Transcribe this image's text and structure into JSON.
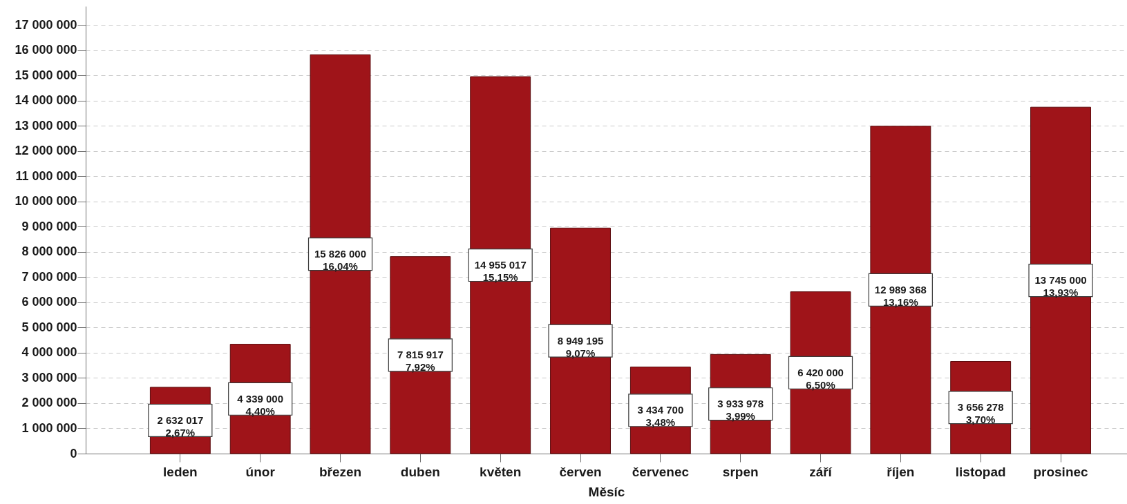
{
  "chart_data": {
    "type": "bar",
    "xlabel": "Měsíc",
    "categories": [
      "leden",
      "únor",
      "březen",
      "duben",
      "květen",
      "červen",
      "červenec",
      "srpen",
      "září",
      "říjen",
      "listopad",
      "prosinec"
    ],
    "values": [
      2632017,
      4339000,
      15826000,
      7815917,
      14955017,
      8949195,
      3434700,
      3933978,
      6420000,
      12989368,
      3656278,
      13745000
    ],
    "value_labels": [
      "2 632 017\n2,67%",
      "4 339 000\n4,40%",
      "15 826 000\n16,04%",
      "7 815 917\n7,92%",
      "14 955 017\n15,15%",
      "8 949 195\n9,07%",
      "3 434 700\n3,48%",
      "3 933 978\n3,99%",
      "6 420 000\n6,50%",
      "12 989 368\n13,16%",
      "3 656 278\n3,70%",
      "13 745 000\n13,93%"
    ],
    "color": "#9f1419",
    "ylim": [
      0,
      17750000
    ],
    "yticks": [
      0,
      {
        "value": 1000000,
        "label": "1 000 000"
      },
      {
        "value": 2000000,
        "label": "2 000 000"
      },
      {
        "value": 3000000,
        "label": "3 000 000"
      },
      {
        "value": 4000000,
        "label": "4 000 000"
      },
      {
        "value": 5000000,
        "label": "5 000 000"
      },
      {
        "value": 6000000,
        "label": "6 000 000"
      },
      {
        "value": 7000000,
        "label": "7 000 000"
      },
      {
        "value": 8000000,
        "label": "8 000 000"
      },
      {
        "value": 9000000,
        "label": "9 000 000"
      },
      {
        "value": 10000000,
        "label": "10 000 000"
      },
      {
        "value": 11000000,
        "label": "11 000 000"
      },
      {
        "value": 12000000,
        "label": "12 000 000"
      },
      {
        "value": 13000000,
        "label": "13 000 000"
      },
      {
        "value": 14000000,
        "label": "14 000 000"
      },
      {
        "value": 15000000,
        "label": "15 000 000"
      },
      {
        "value": 16000000,
        "label": "16 000 000"
      },
      {
        "value": 17000000,
        "label": "17 000 000"
      }
    ],
    "grid": "y"
  }
}
